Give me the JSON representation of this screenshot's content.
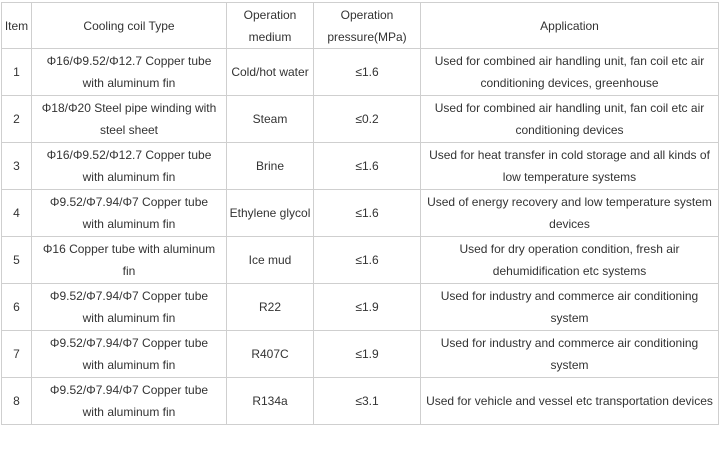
{
  "headers": [
    "Item",
    "Cooling coil Type",
    "Operation medium",
    "Operation pressure(MPa)",
    "Application"
  ],
  "rows": [
    {
      "item": "1",
      "type": "Φ16/Φ9.52/Φ12.7 Copper tube with aluminum fin",
      "medium": "Cold/hot water",
      "pressure": "≤1.6",
      "application": "Used for combined air handling unit, fan coil etc air conditioning devices, greenhouse"
    },
    {
      "item": "2",
      "type": "Φ18/Φ20 Steel pipe winding with steel sheet",
      "medium": "Steam",
      "pressure": "≤0.2",
      "application": "Used for combined air handling unit, fan coil etc air conditioning devices"
    },
    {
      "item": "3",
      "type": "Φ16/Φ9.52/Φ12.7 Copper tube with aluminum fin",
      "medium": "Brine",
      "pressure": "≤1.6",
      "application": "Used for heat transfer in cold storage and all kinds of low temperature systems"
    },
    {
      "item": "4",
      "type": "Φ9.52/Φ7.94/Φ7 Copper tube with aluminum fin",
      "medium": "Ethylene glycol",
      "pressure": "≤1.6",
      "application": "Used of energy recovery and low temperature system devices"
    },
    {
      "item": "5",
      "type": "Φ16 Copper tube with aluminum fin",
      "medium": "Ice mud",
      "pressure": "≤1.6",
      "application": "Used for dry operation condition, fresh air dehumidification etc systems"
    },
    {
      "item": "6",
      "type": "Φ9.52/Φ7.94/Φ7 Copper tube with aluminum fin",
      "medium": "R22",
      "pressure": "≤1.9",
      "application": "Used for industry and commerce air conditioning system"
    },
    {
      "item": "7",
      "type": "Φ9.52/Φ7.94/Φ7 Copper tube with aluminum fin",
      "medium": "R407C",
      "pressure": "≤1.9",
      "application": "Used for industry and commerce air conditioning system"
    },
    {
      "item": "8",
      "type": "Φ9.52/Φ7.94/Φ7 Copper tube with aluminum fin",
      "medium": "R134a",
      "pressure": "≤3.1",
      "application": "Used for vehicle and vessel etc transportation devices"
    }
  ]
}
